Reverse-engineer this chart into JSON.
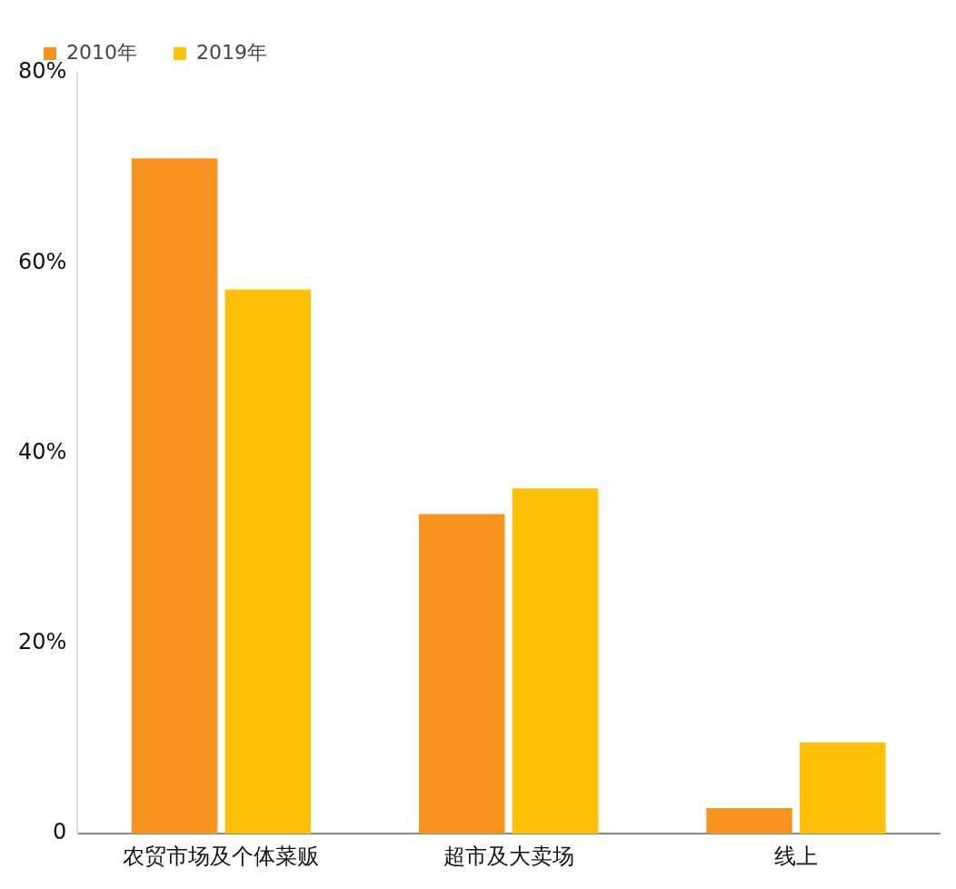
{
  "chart_data": {
    "type": "bar",
    "categories": [
      "农贸市场及个体菜贩",
      "超市及大卖场",
      "线上"
    ],
    "series": [
      {
        "name": "2010年",
        "color": "#f7931e",
        "values": [
          71,
          33.6,
          2.7
        ]
      },
      {
        "name": "2019年",
        "color": "#ffc107",
        "values": [
          57.2,
          36.3,
          9.6
        ]
      }
    ],
    "ylim": [
      0,
      80
    ],
    "yticks": [
      0,
      {
        "value": 20,
        "label": "20%"
      },
      {
        "value": 40,
        "label": "40%"
      },
      {
        "value": 60,
        "label": "60%"
      },
      {
        "value": 80,
        "label": "80%"
      }
    ],
    "grid": false,
    "legend": "top left"
  }
}
